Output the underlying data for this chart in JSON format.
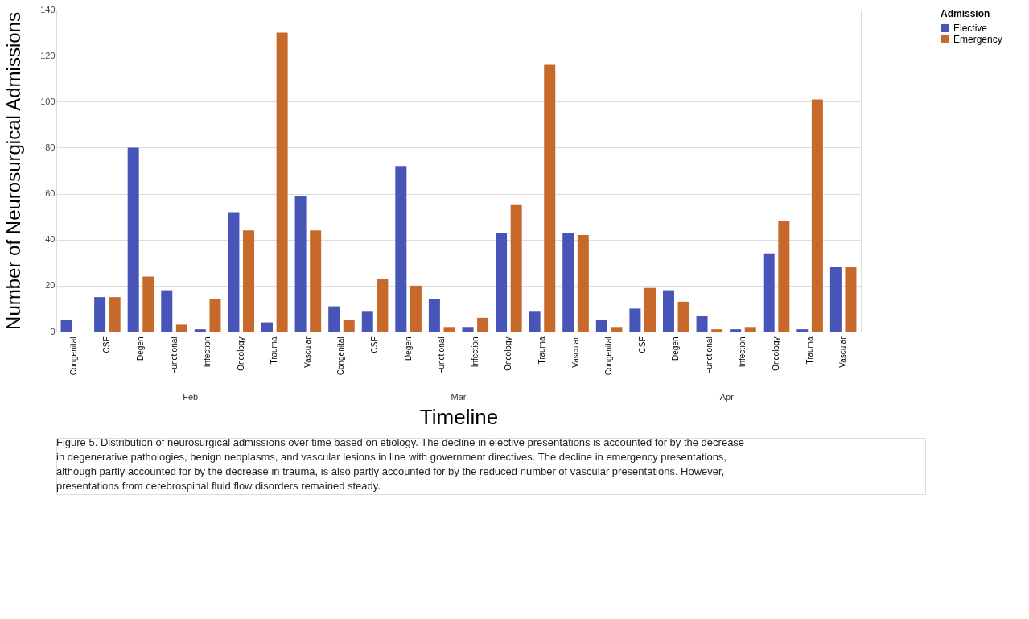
{
  "chart_data": {
    "type": "bar",
    "xlabel": "Timeline",
    "ylabel": "Number of Neurosurgical Admissions",
    "legend_title": "Admission",
    "legend": "right",
    "grid": "y",
    "categories": [
      "Congenital",
      "CSF",
      "Degen",
      "Functional",
      "Infection",
      "Oncology",
      "Trauma",
      "Vascular",
      "Congenital",
      "CSF",
      "Degen",
      "Functional",
      "Infection",
      "Oncology",
      "Trauma",
      "Vascular",
      "Congenital",
      "CSF",
      "Degen",
      "Functional",
      "Infection",
      "Oncology",
      "Trauma",
      "Vascular"
    ],
    "series": [
      {
        "name": "Elective",
        "color": "#4755b8",
        "values": [
          5,
          15,
          80,
          18,
          1,
          52,
          4,
          59,
          11,
          9,
          72,
          14,
          2,
          43,
          9,
          43,
          5,
          10,
          18,
          7,
          1,
          34,
          1,
          28
        ]
      },
      {
        "name": "Emergency",
        "color": "#c8692c",
        "values": [
          0,
          15,
          24,
          3,
          14,
          44,
          130,
          44,
          5,
          23,
          20,
          2,
          6,
          55,
          116,
          42,
          2,
          19,
          13,
          1,
          2,
          48,
          101,
          28
        ]
      }
    ],
    "ylim": [
      0,
      140
    ],
    "yticks": [
      0,
      20,
      40,
      60,
      80,
      100,
      120,
      140
    ],
    "annotations": [
      "Feb",
      "Mar",
      "Apr",
      "Figure 5. Distribution of neurosurgical admissions over time based on etiology. The decline in elective presentations is accounted for by the decrease in degenerative pathologies, benign neoplasms, and vascular lesions in line with government directives. The decline in emergency presentations, although partly accounted for by the decrease in trauma, is also partly accounted for by the reduced number of vascular presentations. However, presentations from cerebrospinal fluid flow disorders remained steady."
    ]
  }
}
